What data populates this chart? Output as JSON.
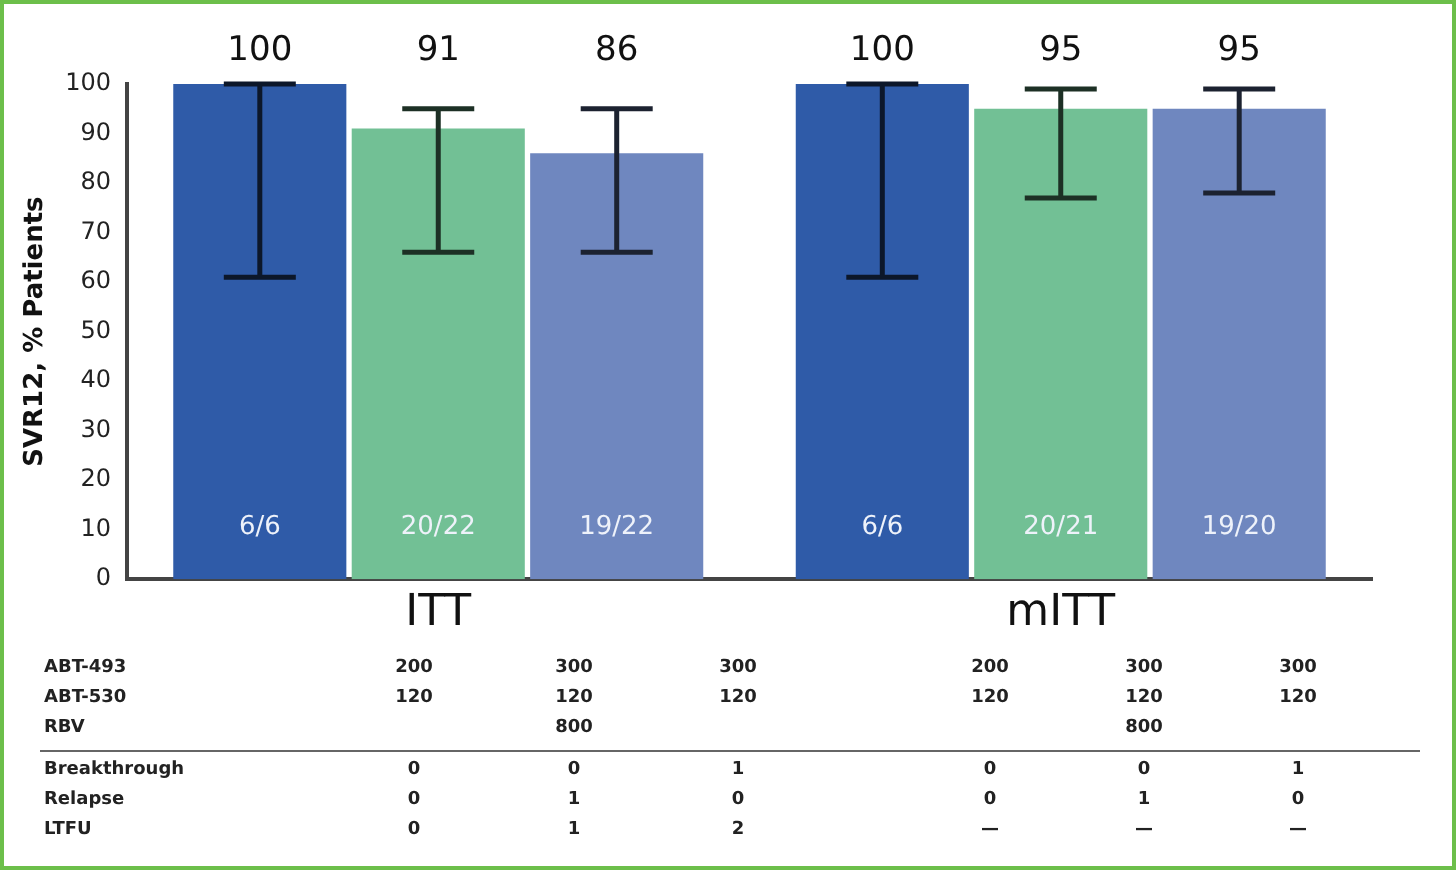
{
  "chart_data": {
    "type": "bar",
    "ylabel": "SVR12, % Patients",
    "categories": [
      "ITT",
      "mITT"
    ],
    "series": [
      {
        "color": "#2f5ba8",
        "values": [
          100,
          100
        ],
        "errors": [
          [
            61,
            100
          ],
          [
            61,
            100
          ]
        ]
      },
      {
        "color": "#72c095",
        "values": [
          91,
          95
        ],
        "errors": [
          [
            66,
            95
          ],
          [
            77,
            99
          ]
        ]
      },
      {
        "color": "#6f87bf",
        "values": [
          86,
          95
        ],
        "errors": [
          [
            66,
            95
          ],
          [
            78,
            99
          ]
        ]
      }
    ],
    "ylim": [
      0,
      100
    ],
    "yticks": [
      0,
      10,
      20,
      30,
      40,
      50,
      60,
      70,
      80,
      90,
      100
    ],
    "grid": false,
    "legend": false,
    "data_labels": true,
    "annotations": [
      "6/6",
      "20/22",
      "19/22",
      "6/6",
      "20/21",
      "19/20",
      "ABT-493",
      "200",
      "300",
      "300",
      "200",
      "300",
      "300",
      "ABT-530",
      "120",
      "120",
      "120",
      "120",
      "120",
      "120",
      "RBV",
      "800",
      "800",
      "Breakthrough",
      "0",
      "0",
      "1",
      "0",
      "0",
      "1",
      "Relapse",
      "0",
      "1",
      "0",
      "0",
      "1",
      "0",
      "LTFU",
      "0",
      "1",
      "2",
      "—",
      "—",
      "—"
    ]
  }
}
